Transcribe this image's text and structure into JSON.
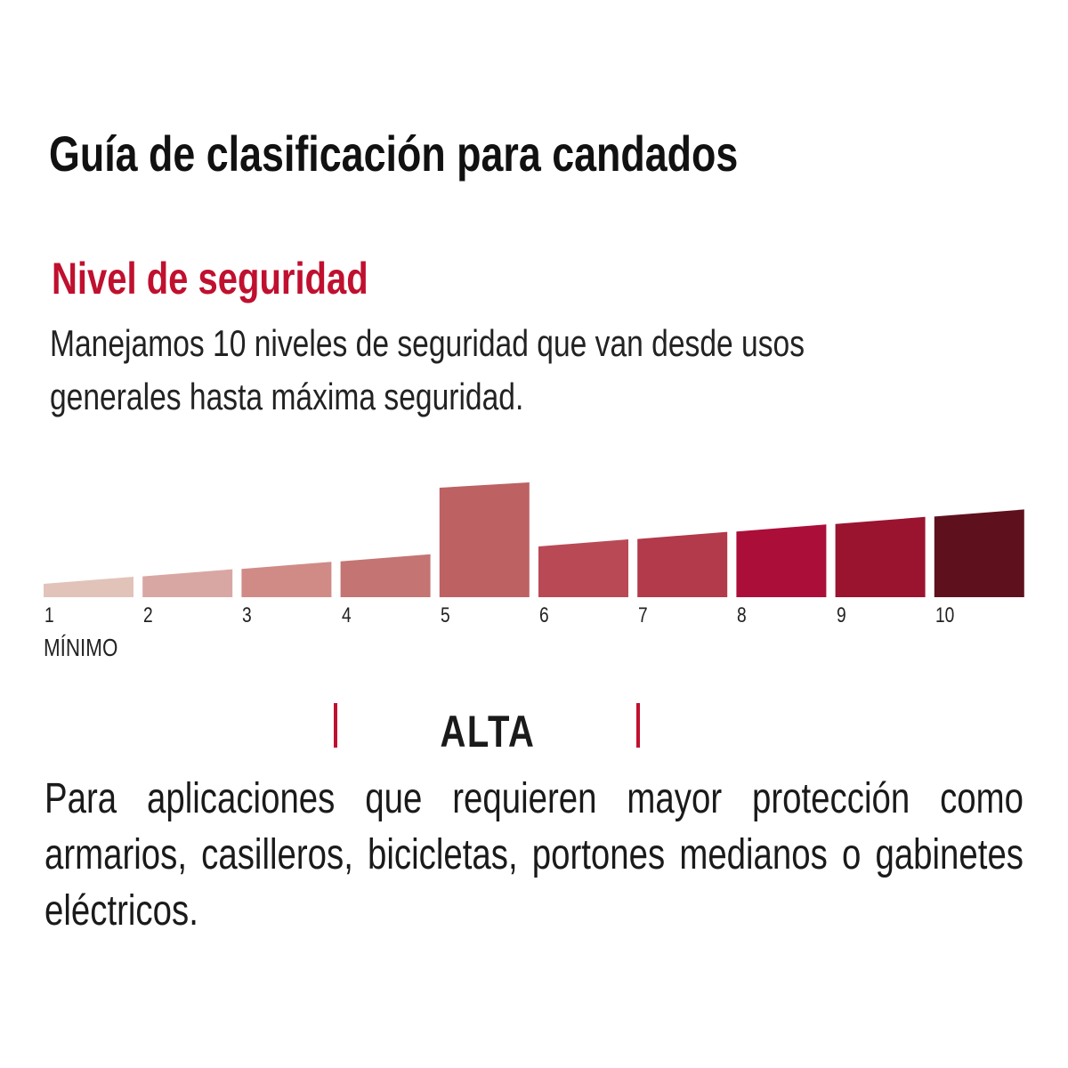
{
  "header": {
    "title": "Guía de clasificación para candados"
  },
  "section": {
    "subtitle": "Nivel de seguridad",
    "description_lines": [
      "Manejamos 10 niveles de seguridad que van desde usos",
      "generales hasta máxima seguridad."
    ]
  },
  "chart_data": {
    "type": "bar",
    "categories": [
      "1",
      "2",
      "3",
      "4",
      "5",
      "6",
      "7",
      "8",
      "9",
      "10"
    ],
    "values": [
      1,
      2,
      3,
      4,
      5,
      6,
      7,
      8,
      9,
      10
    ],
    "highlighted": "5",
    "colors": [
      "#e2c3b9",
      "#d9a7a3",
      "#d08b87",
      "#c47473",
      "#bd6163",
      "#b94a55",
      "#b23a4a",
      "#ac0e3a",
      "#9a1430",
      "#5e111d"
    ],
    "annotation": "MÍNIMO"
  },
  "level": {
    "label": "ALTA",
    "accent": "#c0102f",
    "description": "Para aplicaciones que requieren mayor protección como armarios, casilleros, bicicletas, portones medianos o gabinetes eléctricos."
  }
}
